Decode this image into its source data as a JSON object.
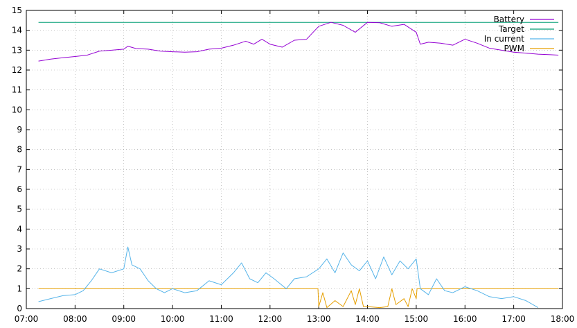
{
  "chart_data": {
    "type": "line",
    "title": "",
    "xlabel": "",
    "ylabel": "",
    "xlim": [
      "07:00",
      "18:00"
    ],
    "ylim": [
      0,
      15
    ],
    "grid": true,
    "legend_position": "top-right",
    "x_ticks": [
      "07:00",
      "08:00",
      "09:00",
      "10:00",
      "11:00",
      "12:00",
      "13:00",
      "14:00",
      "15:00",
      "16:00",
      "17:00",
      "18:00"
    ],
    "y_ticks": [
      0,
      1,
      2,
      3,
      4,
      5,
      6,
      7,
      8,
      9,
      10,
      11,
      12,
      13,
      14,
      15
    ],
    "series": [
      {
        "name": "Battery",
        "color": "#9400d3",
        "points": [
          [
            "07:15",
            12.45
          ],
          [
            "07:30",
            12.55
          ],
          [
            "07:45",
            12.62
          ],
          [
            "08:00",
            12.68
          ],
          [
            "08:15",
            12.75
          ],
          [
            "08:30",
            12.95
          ],
          [
            "08:45",
            13.0
          ],
          [
            "09:00",
            13.05
          ],
          [
            "09:05",
            13.2
          ],
          [
            "09:15",
            13.08
          ],
          [
            "09:30",
            13.05
          ],
          [
            "09:45",
            12.95
          ],
          [
            "10:00",
            12.92
          ],
          [
            "10:15",
            12.9
          ],
          [
            "10:30",
            12.92
          ],
          [
            "10:45",
            13.05
          ],
          [
            "11:00",
            13.1
          ],
          [
            "11:15",
            13.25
          ],
          [
            "11:30",
            13.45
          ],
          [
            "11:40",
            13.3
          ],
          [
            "11:50",
            13.55
          ],
          [
            "12:00",
            13.3
          ],
          [
            "12:15",
            13.15
          ],
          [
            "12:30",
            13.5
          ],
          [
            "12:45",
            13.55
          ],
          [
            "13:00",
            14.2
          ],
          [
            "13:15",
            14.4
          ],
          [
            "13:30",
            14.25
          ],
          [
            "13:45",
            13.9
          ],
          [
            "14:00",
            14.4
          ],
          [
            "14:15",
            14.38
          ],
          [
            "14:30",
            14.2
          ],
          [
            "14:45",
            14.3
          ],
          [
            "15:00",
            13.9
          ],
          [
            "15:05",
            13.3
          ],
          [
            "15:15",
            13.4
          ],
          [
            "15:30",
            13.35
          ],
          [
            "15:45",
            13.25
          ],
          [
            "16:00",
            13.55
          ],
          [
            "16:15",
            13.35
          ],
          [
            "16:30",
            13.1
          ],
          [
            "16:45",
            13.0
          ],
          [
            "17:00",
            12.9
          ],
          [
            "17:15",
            12.85
          ],
          [
            "17:30",
            12.8
          ],
          [
            "17:45",
            12.77
          ],
          [
            "17:55",
            12.75
          ]
        ]
      },
      {
        "name": "Target",
        "color": "#009e73",
        "points": [
          [
            "07:15",
            14.4
          ],
          [
            "17:55",
            14.4
          ]
        ]
      },
      {
        "name": "In current",
        "color": "#56b4e9",
        "points": [
          [
            "07:15",
            0.35
          ],
          [
            "07:30",
            0.5
          ],
          [
            "07:45",
            0.65
          ],
          [
            "08:00",
            0.7
          ],
          [
            "08:10",
            0.9
          ],
          [
            "08:20",
            1.4
          ],
          [
            "08:30",
            2.0
          ],
          [
            "08:45",
            1.8
          ],
          [
            "09:00",
            2.0
          ],
          [
            "09:05",
            3.1
          ],
          [
            "09:10",
            2.2
          ],
          [
            "09:20",
            2.0
          ],
          [
            "09:30",
            1.4
          ],
          [
            "09:40",
            1.0
          ],
          [
            "09:50",
            0.8
          ],
          [
            "10:00",
            1.0
          ],
          [
            "10:15",
            0.8
          ],
          [
            "10:30",
            0.9
          ],
          [
            "10:45",
            1.4
          ],
          [
            "11:00",
            1.2
          ],
          [
            "11:15",
            1.8
          ],
          [
            "11:25",
            2.3
          ],
          [
            "11:35",
            1.5
          ],
          [
            "11:45",
            1.3
          ],
          [
            "11:55",
            1.8
          ],
          [
            "12:05",
            1.5
          ],
          [
            "12:20",
            1.0
          ],
          [
            "12:30",
            1.5
          ],
          [
            "12:45",
            1.6
          ],
          [
            "13:00",
            2.0
          ],
          [
            "13:10",
            2.5
          ],
          [
            "13:20",
            1.8
          ],
          [
            "13:30",
            2.8
          ],
          [
            "13:40",
            2.2
          ],
          [
            "13:50",
            1.9
          ],
          [
            "14:00",
            2.4
          ],
          [
            "14:10",
            1.5
          ],
          [
            "14:20",
            2.6
          ],
          [
            "14:30",
            1.7
          ],
          [
            "14:40",
            2.4
          ],
          [
            "14:50",
            2.0
          ],
          [
            "15:00",
            2.5
          ],
          [
            "15:05",
            1.0
          ],
          [
            "15:15",
            0.7
          ],
          [
            "15:25",
            1.5
          ],
          [
            "15:35",
            0.9
          ],
          [
            "15:45",
            0.8
          ],
          [
            "16:00",
            1.1
          ],
          [
            "16:15",
            0.9
          ],
          [
            "16:30",
            0.6
          ],
          [
            "16:45",
            0.5
          ],
          [
            "17:00",
            0.6
          ],
          [
            "17:15",
            0.4
          ],
          [
            "17:30",
            0.05
          ]
        ]
      },
      {
        "name": "PWM",
        "color": "#e69f00",
        "points": [
          [
            "07:15",
            1.0
          ],
          [
            "12:59",
            1.0
          ],
          [
            "13:00",
            0.1
          ],
          [
            "13:05",
            0.8
          ],
          [
            "13:10",
            0.05
          ],
          [
            "13:20",
            0.4
          ],
          [
            "13:30",
            0.1
          ],
          [
            "13:40",
            0.9
          ],
          [
            "13:45",
            0.2
          ],
          [
            "13:50",
            1.0
          ],
          [
            "13:55",
            0.1
          ],
          [
            "14:00",
            0.1
          ],
          [
            "14:15",
            0.05
          ],
          [
            "14:25",
            0.1
          ],
          [
            "14:30",
            1.0
          ],
          [
            "14:35",
            0.2
          ],
          [
            "14:45",
            0.5
          ],
          [
            "14:50",
            0.1
          ],
          [
            "14:55",
            1.0
          ],
          [
            "15:00",
            0.5
          ],
          [
            "15:01",
            1.0
          ],
          [
            "17:55",
            1.0
          ]
        ]
      }
    ]
  }
}
